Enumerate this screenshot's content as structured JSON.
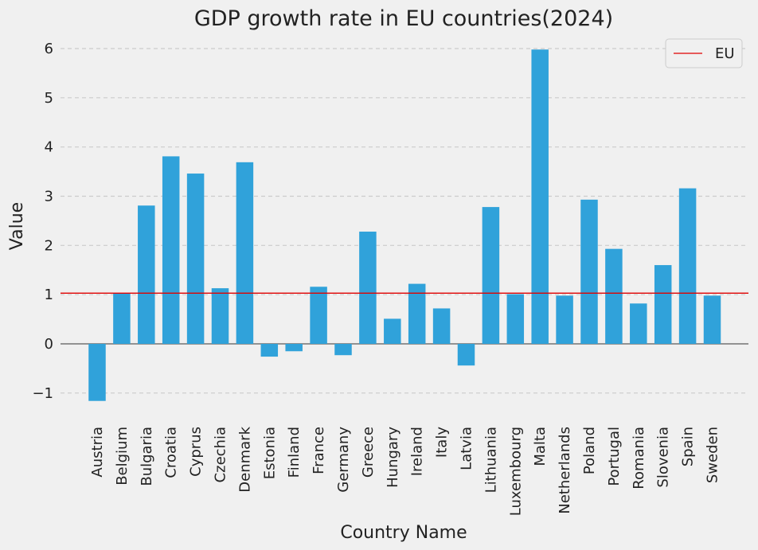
{
  "chart_data": {
    "type": "bar",
    "title": "GDP growth rate in EU countries(2024)",
    "xlabel": "Country Name",
    "ylabel": "Value",
    "ylim": [
      -1.5,
      6.3
    ],
    "yticks": [
      -1,
      0,
      1,
      2,
      3,
      4,
      5,
      6
    ],
    "ytick_labels": [
      "−1",
      "0",
      "1",
      "2",
      "3",
      "4",
      "5",
      "6"
    ],
    "grid": "y-dashed",
    "bar_color": "#30a2da",
    "reference_line": {
      "name": "EU",
      "value": 1.03,
      "color": "#e00000"
    },
    "legend": {
      "position": "top-right",
      "entries": [
        "EU"
      ]
    },
    "categories": [
      "Austria",
      "Belgium",
      "Bulgaria",
      "Croatia",
      "Cyprus",
      "Czechia",
      "Denmark",
      "Estonia",
      "Finland",
      "France",
      "Germany",
      "Greece",
      "Hungary",
      "Ireland",
      "Italy",
      "Latvia",
      "Lithuania",
      "Luxembourg",
      "Malta",
      "Netherlands",
      "Poland",
      "Portugal",
      "Romania",
      "Slovenia",
      "Spain",
      "Sweden"
    ],
    "values": [
      -1.16,
      1.03,
      2.81,
      3.81,
      3.46,
      1.13,
      3.69,
      -0.26,
      -0.15,
      1.16,
      -0.23,
      2.28,
      0.51,
      1.22,
      0.72,
      -0.44,
      2.78,
      1.01,
      5.98,
      0.98,
      2.93,
      1.93,
      0.82,
      1.6,
      3.16,
      0.98
    ]
  }
}
